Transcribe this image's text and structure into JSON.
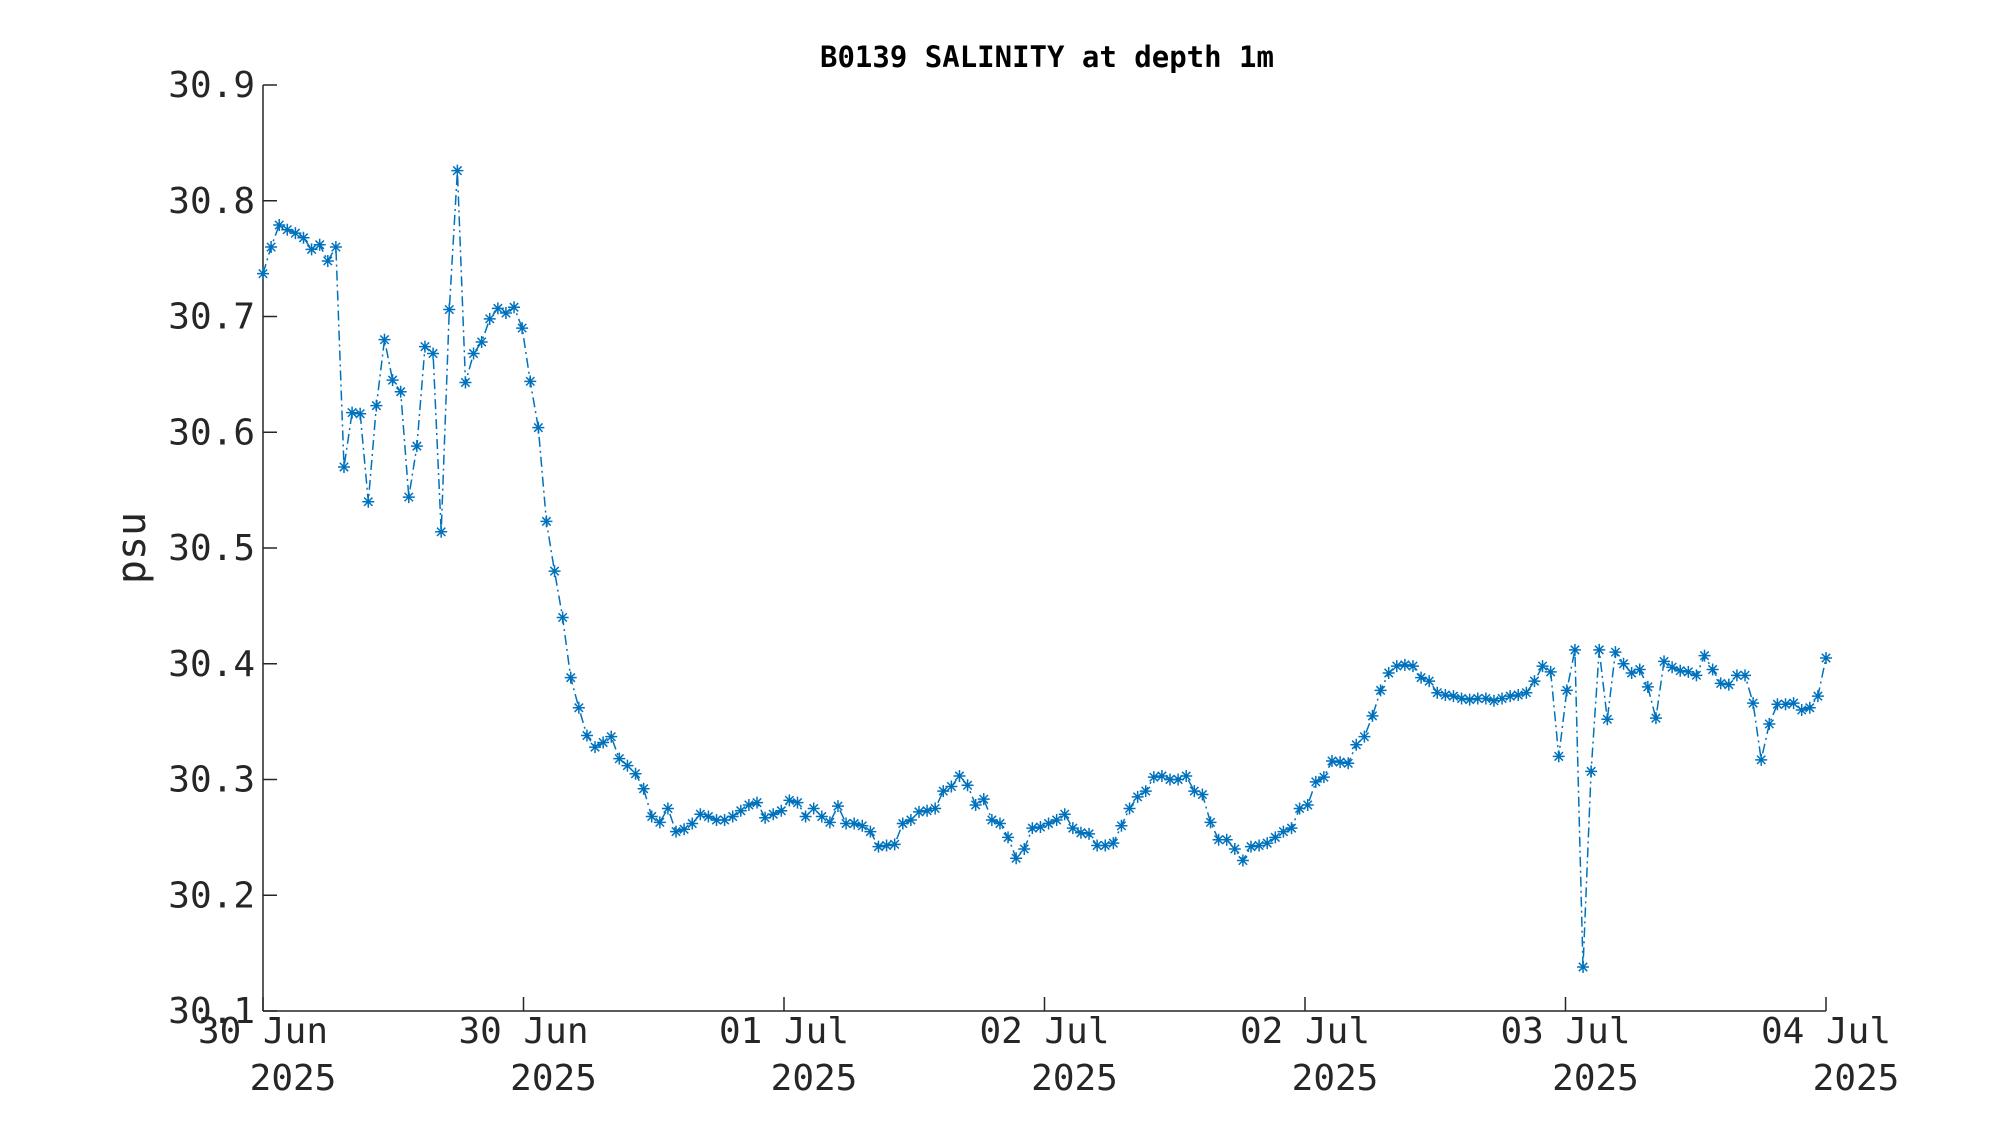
{
  "chart_data": {
    "type": "line",
    "title": "B0139 SALINITY at depth 1m",
    "xlabel": "",
    "ylabel": "psu",
    "ylim": [
      30.1,
      30.9
    ],
    "yticks": [
      "30.1",
      "30.2",
      "30.3",
      "30.4",
      "30.5",
      "30.6",
      "30.7",
      "30.8",
      "30.9"
    ],
    "xticks": [
      {
        "line1": "30 Jun",
        "line2": "2025"
      },
      {
        "line1": "30 Jun",
        "line2": "2025"
      },
      {
        "line1": "01 Jul",
        "line2": "2025"
      },
      {
        "line1": "02 Jul",
        "line2": "2025"
      },
      {
        "line1": "02 Jul",
        "line2": "2025"
      },
      {
        "line1": "03 Jul",
        "line2": "2025"
      },
      {
        "line1": "04 Jul",
        "line2": "2025"
      }
    ],
    "marker": "asterisk",
    "line_style": "dash-dot",
    "color": "#0072BD",
    "grid": false,
    "series": [
      {
        "values": [
          30.737,
          30.76,
          30.779,
          30.775,
          30.772,
          30.768,
          30.758,
          30.762,
          30.748,
          30.76,
          30.57,
          30.617,
          30.616,
          30.54,
          30.623,
          30.68,
          30.645,
          30.635,
          30.544,
          30.588,
          30.674,
          30.668,
          30.514,
          30.706,
          30.826,
          30.643,
          30.668,
          30.678,
          30.698,
          30.707,
          30.703,
          30.708,
          30.69,
          30.644,
          30.604,
          30.523,
          30.48,
          30.44,
          30.388,
          30.362,
          30.338,
          30.328,
          30.332,
          30.337,
          30.318,
          30.312,
          30.305,
          30.292,
          30.268,
          30.263,
          30.275,
          30.255,
          30.257,
          30.262,
          30.27,
          30.268,
          30.265,
          30.265,
          30.268,
          30.273,
          30.278,
          30.28,
          30.267,
          30.27,
          30.273,
          30.282,
          30.28,
          30.268,
          30.275,
          30.268,
          30.263,
          30.277,
          30.262,
          30.262,
          30.26,
          30.255,
          30.242,
          30.243,
          30.244,
          30.262,
          30.265,
          30.272,
          30.273,
          30.275,
          30.29,
          30.294,
          30.303,
          30.295,
          30.278,
          30.283,
          30.265,
          30.262,
          30.25,
          30.232,
          30.24,
          30.258,
          30.259,
          30.262,
          30.265,
          30.27,
          30.258,
          30.254,
          30.253,
          30.243,
          30.243,
          30.245,
          30.26,
          30.275,
          30.285,
          30.29,
          30.302,
          30.303,
          30.3,
          30.3,
          30.303,
          30.29,
          30.287,
          30.263,
          30.248,
          30.248,
          30.24,
          30.23,
          30.242,
          30.243,
          30.245,
          30.25,
          30.255,
          30.258,
          30.275,
          30.278,
          30.298,
          30.302,
          30.316,
          30.315,
          30.314,
          30.33,
          30.337,
          30.355,
          30.377,
          30.392,
          30.398,
          30.399,
          30.398,
          30.388,
          30.385,
          30.375,
          30.373,
          30.372,
          30.37,
          30.369,
          30.37,
          30.37,
          30.368,
          30.37,
          30.372,
          30.373,
          30.375,
          30.385,
          30.398,
          30.393,
          30.32,
          30.377,
          30.412,
          30.138,
          30.307,
          30.412,
          30.352,
          30.41,
          30.4,
          30.392,
          30.395,
          30.38,
          30.353,
          30.402,
          30.397,
          30.394,
          30.393,
          30.39,
          30.407,
          30.395,
          30.383,
          30.382,
          30.39,
          30.39,
          30.366,
          30.317,
          30.348,
          30.365,
          30.365,
          30.366,
          30.36,
          30.362,
          30.372,
          30.405
        ]
      }
    ]
  }
}
